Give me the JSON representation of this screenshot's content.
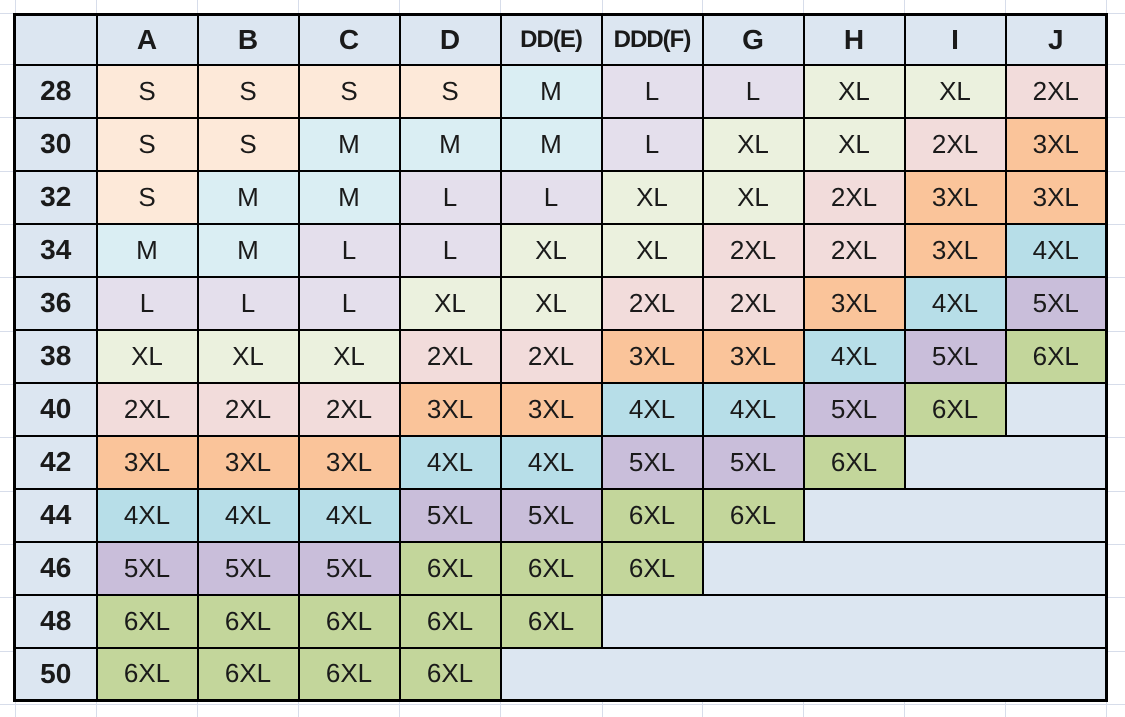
{
  "chart_data": {
    "type": "table",
    "description": "Band size by cup size to letter-size conversion grid",
    "corner_label": "",
    "columns": [
      "A",
      "B",
      "C",
      "D",
      "DD(E)",
      "DDD(F)",
      "G",
      "H",
      "I",
      "J"
    ],
    "rows": [
      {
        "band": "28",
        "sizes": [
          "S",
          "S",
          "S",
          "S",
          "M",
          "L",
          "L",
          "XL",
          "XL",
          "2XL"
        ]
      },
      {
        "band": "30",
        "sizes": [
          "S",
          "S",
          "M",
          "M",
          "M",
          "L",
          "XL",
          "XL",
          "2XL",
          "3XL"
        ]
      },
      {
        "band": "32",
        "sizes": [
          "S",
          "M",
          "M",
          "L",
          "L",
          "XL",
          "XL",
          "2XL",
          "3XL",
          "3XL"
        ]
      },
      {
        "band": "34",
        "sizes": [
          "M",
          "M",
          "L",
          "L",
          "XL",
          "XL",
          "2XL",
          "2XL",
          "3XL",
          "4XL"
        ]
      },
      {
        "band": "36",
        "sizes": [
          "L",
          "L",
          "L",
          "XL",
          "XL",
          "2XL",
          "2XL",
          "3XL",
          "4XL",
          "5XL"
        ]
      },
      {
        "band": "38",
        "sizes": [
          "XL",
          "XL",
          "XL",
          "2XL",
          "2XL",
          "3XL",
          "3XL",
          "4XL",
          "5XL",
          "6XL"
        ]
      },
      {
        "band": "40",
        "sizes": [
          "2XL",
          "2XL",
          "2XL",
          "3XL",
          "3XL",
          "4XL",
          "4XL",
          "5XL",
          "6XL",
          null
        ]
      },
      {
        "band": "42",
        "sizes": [
          "3XL",
          "3XL",
          "3XL",
          "4XL",
          "4XL",
          "5XL",
          "5XL",
          "6XL",
          null,
          null
        ]
      },
      {
        "band": "44",
        "sizes": [
          "4XL",
          "4XL",
          "4XL",
          "5XL",
          "5XL",
          "6XL",
          "6XL",
          null,
          null,
          null
        ]
      },
      {
        "band": "46",
        "sizes": [
          "5XL",
          "5XL",
          "5XL",
          "6XL",
          "6XL",
          "6XL",
          null,
          null,
          null,
          null
        ]
      },
      {
        "band": "48",
        "sizes": [
          "6XL",
          "6XL",
          "6XL",
          "6XL",
          "6XL",
          null,
          null,
          null,
          null,
          null
        ]
      },
      {
        "band": "50",
        "sizes": [
          "6XL",
          "6XL",
          "6XL",
          "6XL",
          null,
          null,
          null,
          null,
          null,
          null
        ]
      }
    ]
  },
  "colors": {
    "header_bg": "#DCE6F1",
    "empty_bg": "#DCE6F1",
    "table_border": "#000000",
    "text": "#1A1A1A",
    "sheet_bg": "#FFFFFF",
    "grid_line": "#D7DDEA",
    "size_fill": {
      "S": "#FDE9D9",
      "M": "#DAEEF3",
      "L": "#E4DFEC",
      "XL": "#EBF1DE",
      "2XL": "#F2DCDB",
      "3XL": "#FAC49A",
      "4XL": "#B7DEE8",
      "5XL": "#C9BEDA",
      "6XL": "#C3D69B"
    }
  }
}
